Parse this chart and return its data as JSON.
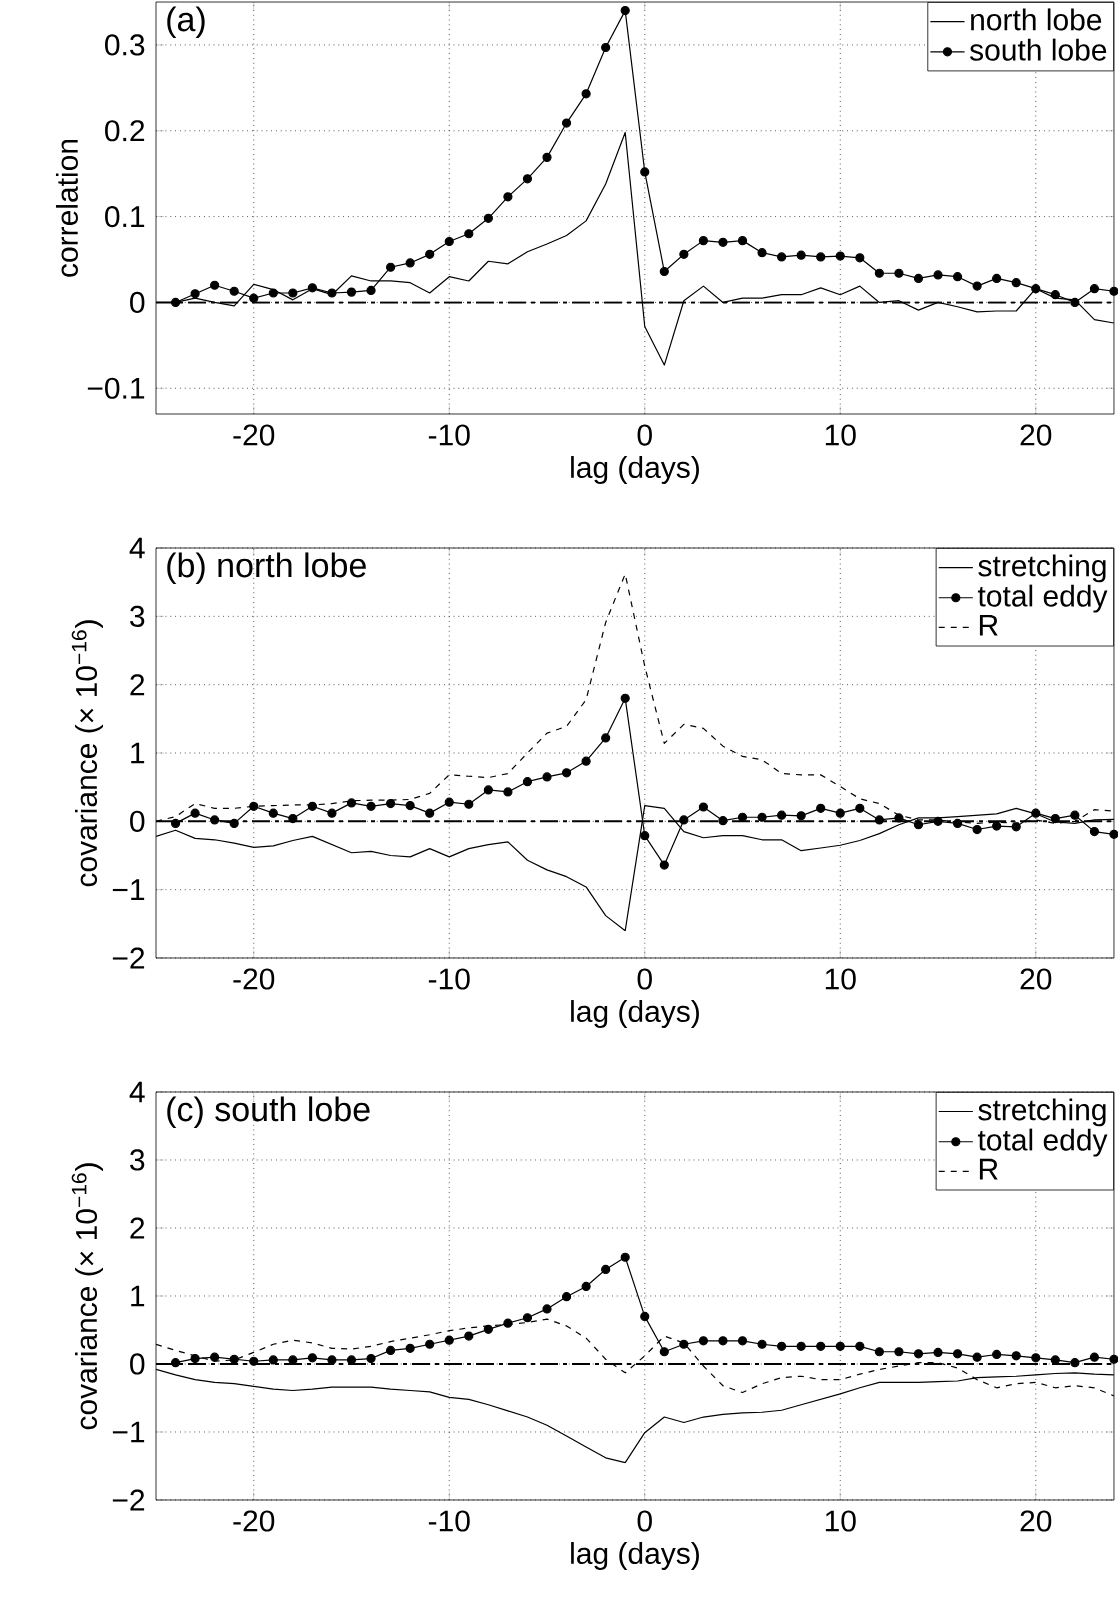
{
  "chart_data": [
    {
      "type": "line",
      "xlabel": "lag (days)",
      "ylabel": "correlation",
      "annotations": [
        "(a)"
      ],
      "x": [
        -25,
        -24,
        -23,
        -22,
        -21,
        -20,
        -19,
        -18,
        -17,
        -16,
        -15,
        -14,
        -13,
        -12,
        -11,
        -10,
        -9,
        -8,
        -7,
        -6,
        -5,
        -4,
        -3,
        -2,
        -1,
        0,
        1,
        2,
        3,
        4,
        5,
        6,
        7,
        8,
        9,
        10,
        11,
        12,
        13,
        14,
        15,
        16,
        17,
        18,
        19,
        20,
        21,
        22,
        23,
        24
      ],
      "xlim": [
        -25,
        24
      ],
      "ylim": [
        -0.13,
        0.35
      ],
      "xticks": [
        -20,
        -10,
        0,
        10,
        20
      ],
      "yticks": [
        {
          "value": -0.1,
          "label": "−0.1"
        },
        0,
        0.1,
        0.2,
        0.3
      ],
      "grid": true,
      "legend": "top right",
      "ref_lines": [
        {
          "axis": "y",
          "value": 0,
          "line_style": "dashdot",
          "color": "#000000"
        }
      ],
      "series": [
        {
          "name": "north lobe",
          "color": "#000000",
          "line_style": "solid",
          "marker": "none",
          "values": [
            0,
            0,
            0.005,
            0,
            -0.004,
            0.021,
            0.015,
            0.003,
            0.016,
            0.009,
            0.031,
            0.025,
            0.025,
            0.023,
            0.011,
            0.03,
            0.025,
            0.048,
            0.045,
            0.059,
            0.068,
            0.078,
            0.095,
            0.138,
            0.198,
            -0.028,
            -0.073,
            0.002,
            0.019,
            0,
            0.005,
            0.005,
            0.009,
            0.009,
            0.017,
            0.009,
            0.019,
            0,
            0.002,
            -0.009,
            0,
            -0.005,
            -0.011,
            -0.01,
            -0.01,
            0.016,
            0.005,
            0.003,
            -0.02,
            -0.024
          ]
        },
        {
          "name": "south lobe",
          "color": "#000000",
          "line_style": "solid",
          "marker": "circle",
          "values": [
            null,
            0,
            0.01,
            0.02,
            0.013,
            0.005,
            0.011,
            0.011,
            0.017,
            0.011,
            0.012,
            0.014,
            0.041,
            0.046,
            0.056,
            0.071,
            0.08,
            0.098,
            0.123,
            0.144,
            0.169,
            0.209,
            0.243,
            0.297,
            0.34,
            0.152,
            0.036,
            0.056,
            0.072,
            0.07,
            0.072,
            0.058,
            0.053,
            0.055,
            0.053,
            0.054,
            0.052,
            0.034,
            0.034,
            0.028,
            0.032,
            0.03,
            0.019,
            0.028,
            0.023,
            0.016,
            0.009,
            0,
            0.016,
            0.013
          ]
        }
      ]
    },
    {
      "type": "line",
      "xlabel": "lag (days)",
      "ylabel": "covariance (× 10$^{−16}$)",
      "annotations": [
        "(b) north lobe"
      ],
      "x": [
        -25,
        -24,
        -23,
        -22,
        -21,
        -20,
        -19,
        -18,
        -17,
        -16,
        -15,
        -14,
        -13,
        -12,
        -11,
        -10,
        -9,
        -8,
        -7,
        -6,
        -5,
        -4,
        -3,
        -2,
        -1,
        0,
        1,
        2,
        3,
        4,
        5,
        6,
        7,
        8,
        9,
        10,
        11,
        12,
        13,
        14,
        15,
        16,
        17,
        18,
        19,
        20,
        21,
        22,
        23,
        24
      ],
      "xlim": [
        -25,
        24
      ],
      "ylim": [
        -2,
        4
      ],
      "xticks": [
        -20,
        -10,
        0,
        10,
        20
      ],
      "yticks": [
        {
          "value": -2,
          "label": "−2"
        },
        {
          "value": -1,
          "label": "−1"
        },
        0,
        1,
        2,
        3,
        4
      ],
      "grid": true,
      "legend": "top right",
      "ref_lines": [
        {
          "axis": "y",
          "value": 0,
          "line_style": "dashdot",
          "color": "#000000"
        }
      ],
      "series": [
        {
          "name": "stretching",
          "color": "#000000",
          "line_style": "solid",
          "marker": "none",
          "values": [
            -0.22,
            -0.13,
            -0.25,
            -0.27,
            -0.32,
            -0.38,
            -0.36,
            -0.28,
            -0.22,
            -0.34,
            -0.46,
            -0.44,
            -0.5,
            -0.52,
            -0.4,
            -0.52,
            -0.4,
            -0.34,
            -0.3,
            -0.57,
            -0.71,
            -0.81,
            -0.96,
            -1.38,
            -1.6,
            0.23,
            0.19,
            -0.15,
            -0.24,
            -0.21,
            -0.21,
            -0.27,
            -0.27,
            -0.43,
            -0.39,
            -0.35,
            -0.28,
            -0.18,
            -0.05,
            0.05,
            0.05,
            0.07,
            0.09,
            0.11,
            0.19,
            0.11,
            -0.01,
            -0.03,
            0.02,
            0.03
          ]
        },
        {
          "name": "total eddy",
          "color": "#000000",
          "line_style": "solid",
          "marker": "circle",
          "values": [
            null,
            -0.03,
            0.12,
            0.02,
            -0.03,
            0.22,
            0.12,
            0.04,
            0.22,
            0.12,
            0.27,
            0.22,
            0.26,
            0.23,
            0.12,
            0.28,
            0.25,
            0.46,
            0.43,
            0.58,
            0.65,
            0.71,
            0.88,
            1.22,
            1.8,
            -0.21,
            -0.64,
            0.02,
            0.21,
            0.01,
            0.06,
            0.06,
            0.09,
            0.08,
            0.19,
            0.12,
            0.19,
            0.02,
            0.05,
            -0.05,
            0,
            -0.03,
            -0.12,
            -0.07,
            -0.08,
            0.12,
            0.04,
            0.09,
            -0.15,
            -0.19
          ]
        },
        {
          "name": "R",
          "color": "#000000",
          "line_style": "dashed",
          "marker": "none",
          "values": [
            0,
            0.07,
            0.26,
            0.19,
            0.19,
            0.22,
            0.23,
            0.24,
            0.24,
            0.26,
            0.3,
            0.31,
            0.31,
            0.32,
            0.41,
            0.68,
            0.66,
            0.64,
            0.7,
            1.0,
            1.29,
            1.39,
            1.78,
            2.91,
            3.62,
            2.27,
            1.14,
            1.42,
            1.36,
            1.1,
            0.95,
            0.9,
            0.7,
            0.68,
            0.68,
            0.51,
            0.33,
            0.26,
            0.09,
            0.02,
            0.02,
            -0.01,
            -0.03,
            -0.01,
            -0.03,
            0.02,
            -0.03,
            0,
            0.17,
            0.15
          ]
        }
      ]
    },
    {
      "type": "line",
      "xlabel": "lag (days)",
      "ylabel": "covariance (× 10$^{−16}$)",
      "annotations": [
        "(c) south lobe"
      ],
      "x": [
        -25,
        -24,
        -23,
        -22,
        -21,
        -20,
        -19,
        -18,
        -17,
        -16,
        -15,
        -14,
        -13,
        -12,
        -11,
        -10,
        -9,
        -8,
        -7,
        -6,
        -5,
        -4,
        -3,
        -2,
        -1,
        0,
        1,
        2,
        3,
        4,
        5,
        6,
        7,
        8,
        9,
        10,
        11,
        12,
        13,
        14,
        15,
        16,
        17,
        18,
        19,
        20,
        21,
        22,
        23,
        24
      ],
      "xlim": [
        -25,
        24
      ],
      "ylim": [
        -2,
        4
      ],
      "xticks": [
        -20,
        -10,
        0,
        10,
        20
      ],
      "yticks": [
        {
          "value": -2,
          "label": "−2"
        },
        {
          "value": -1,
          "label": "−1"
        },
        0,
        1,
        2,
        3,
        4
      ],
      "grid": true,
      "legend": "top right",
      "ref_lines": [
        {
          "axis": "y",
          "value": 0,
          "line_style": "dashdot",
          "color": "#000000"
        }
      ],
      "series": [
        {
          "name": "stretching",
          "color": "#000000",
          "line_style": "solid",
          "marker": "none",
          "values": [
            -0.08,
            -0.16,
            -0.23,
            -0.27,
            -0.29,
            -0.33,
            -0.37,
            -0.39,
            -0.37,
            -0.34,
            -0.34,
            -0.34,
            -0.37,
            -0.39,
            -0.41,
            -0.49,
            -0.52,
            -0.6,
            -0.69,
            -0.78,
            -0.9,
            -1.06,
            -1.22,
            -1.38,
            -1.45,
            -1.01,
            -0.78,
            -0.86,
            -0.78,
            -0.74,
            -0.72,
            -0.71,
            -0.68,
            -0.6,
            -0.52,
            -0.44,
            -0.35,
            -0.27,
            -0.27,
            -0.27,
            -0.26,
            -0.25,
            -0.2,
            -0.19,
            -0.18,
            -0.16,
            -0.14,
            -0.13,
            -0.15,
            -0.16
          ]
        },
        {
          "name": "total eddy",
          "color": "#000000",
          "line_style": "solid",
          "marker": "circle",
          "values": [
            null,
            0.02,
            0.08,
            0.1,
            0.07,
            0.04,
            0.06,
            0.06,
            0.09,
            0.06,
            0.06,
            0.08,
            0.2,
            0.23,
            0.29,
            0.35,
            0.41,
            0.51,
            0.6,
            0.68,
            0.81,
            0.99,
            1.14,
            1.39,
            1.57,
            0.7,
            0.18,
            0.29,
            0.34,
            0.34,
            0.34,
            0.29,
            0.26,
            0.26,
            0.26,
            0.26,
            0.26,
            0.18,
            0.18,
            0.15,
            0.17,
            0.15,
            0.1,
            0.14,
            0.12,
            0.09,
            0.06,
            0.02,
            0.1,
            0.07
          ]
        },
        {
          "name": "R",
          "color": "#000000",
          "line_style": "dashed",
          "marker": "none",
          "values": [
            0.29,
            0.2,
            0.12,
            0.04,
            0.06,
            0.17,
            0.29,
            0.35,
            0.31,
            0.23,
            0.22,
            0.26,
            0.33,
            0.38,
            0.43,
            0.49,
            0.53,
            0.56,
            0.58,
            0.61,
            0.66,
            0.56,
            0.38,
            0.07,
            -0.13,
            0.12,
            0.41,
            0.31,
            -0.03,
            -0.32,
            -0.42,
            -0.29,
            -0.2,
            -0.18,
            -0.23,
            -0.23,
            -0.15,
            -0.08,
            -0.03,
            0.02,
            0.02,
            -0.06,
            -0.23,
            -0.35,
            -0.29,
            -0.27,
            -0.35,
            -0.32,
            -0.35,
            -0.47
          ]
        }
      ]
    }
  ]
}
